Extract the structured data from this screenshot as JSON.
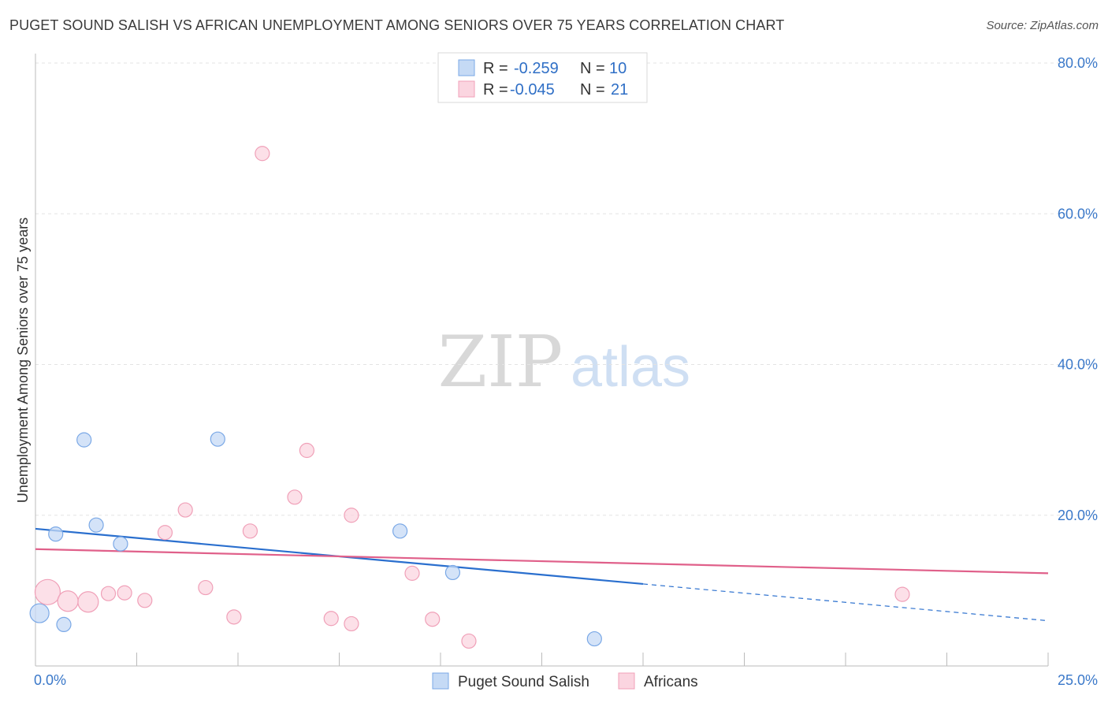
{
  "header": {
    "title": "PUGET SOUND SALISH VS AFRICAN UNEMPLOYMENT AMONG SENIORS OVER 75 YEARS CORRELATION CHART",
    "source": "Source: ZipAtlas.com"
  },
  "watermark": {
    "zip": "ZIP",
    "atlas": "atlas"
  },
  "legend_top": {
    "rows": [
      {
        "r_label": "R =",
        "r_value": "-0.259",
        "n_label": "N =",
        "n_value": "10"
      },
      {
        "r_label": "R =",
        "r_value": "-0.045",
        "n_label": "N =",
        "n_value": "21"
      }
    ]
  },
  "chart_data": {
    "type": "scatter",
    "xlabel": "",
    "ylabel": "Unemployment Among Seniors over 75 years",
    "xlim": [
      0,
      25
    ],
    "ylim": [
      0,
      80
    ],
    "x_tick_labels": [
      "0.0%",
      "25.0%"
    ],
    "y_ticks": [
      20,
      40,
      60,
      80
    ],
    "y_tick_labels": [
      "20.0%",
      "40.0%",
      "60.0%",
      "80.0%"
    ],
    "grid": true,
    "legend_position": "bottom",
    "series": [
      {
        "name": "Puget Sound Salish",
        "color": "#7aa8e6",
        "fill": "#c5daf5",
        "line_color": "#2a6fce",
        "trend": {
          "x_start": 0,
          "y_start": 18.2,
          "x_solid_end": 15,
          "x_end": 25,
          "y_end": 6.0
        },
        "points": [
          {
            "x": 0.1,
            "y": 7.0,
            "size": 12
          },
          {
            "x": 0.5,
            "y": 17.5,
            "size": 9
          },
          {
            "x": 0.7,
            "y": 5.5,
            "size": 9
          },
          {
            "x": 1.2,
            "y": 30.0,
            "size": 9
          },
          {
            "x": 1.5,
            "y": 18.7,
            "size": 9
          },
          {
            "x": 2.1,
            "y": 16.2,
            "size": 9
          },
          {
            "x": 4.5,
            "y": 30.1,
            "size": 9
          },
          {
            "x": 9.0,
            "y": 17.9,
            "size": 9
          },
          {
            "x": 10.3,
            "y": 12.4,
            "size": 9
          },
          {
            "x": 13.8,
            "y": 3.6,
            "size": 9
          }
        ]
      },
      {
        "name": "Africans",
        "color": "#f0a0b8",
        "fill": "#fbd5e0",
        "line_color": "#e0608a",
        "trend": {
          "x_start": 0,
          "y_start": 15.5,
          "x_end": 25,
          "y_end": 12.3
        },
        "points": [
          {
            "x": 0.3,
            "y": 9.8,
            "size": 16
          },
          {
            "x": 1.3,
            "y": 8.5,
            "size": 13
          },
          {
            "x": 0.8,
            "y": 8.6,
            "size": 13
          },
          {
            "x": 1.8,
            "y": 9.6,
            "size": 9
          },
          {
            "x": 2.2,
            "y": 9.7,
            "size": 9
          },
          {
            "x": 2.7,
            "y": 8.7,
            "size": 9
          },
          {
            "x": 3.2,
            "y": 17.7,
            "size": 9
          },
          {
            "x": 3.7,
            "y": 20.7,
            "size": 9
          },
          {
            "x": 4.2,
            "y": 10.4,
            "size": 9
          },
          {
            "x": 4.9,
            "y": 6.5,
            "size": 9
          },
          {
            "x": 5.3,
            "y": 17.9,
            "size": 9
          },
          {
            "x": 5.6,
            "y": 68.0,
            "size": 9
          },
          {
            "x": 6.4,
            "y": 22.4,
            "size": 9
          },
          {
            "x": 6.7,
            "y": 28.6,
            "size": 9
          },
          {
            "x": 7.3,
            "y": 6.3,
            "size": 9
          },
          {
            "x": 7.8,
            "y": 20.0,
            "size": 9
          },
          {
            "x": 7.8,
            "y": 5.6,
            "size": 9
          },
          {
            "x": 9.3,
            "y": 12.3,
            "size": 9
          },
          {
            "x": 9.8,
            "y": 6.2,
            "size": 9
          },
          {
            "x": 10.7,
            "y": 3.3,
            "size": 9
          },
          {
            "x": 21.4,
            "y": 9.5,
            "size": 9
          }
        ]
      }
    ]
  }
}
